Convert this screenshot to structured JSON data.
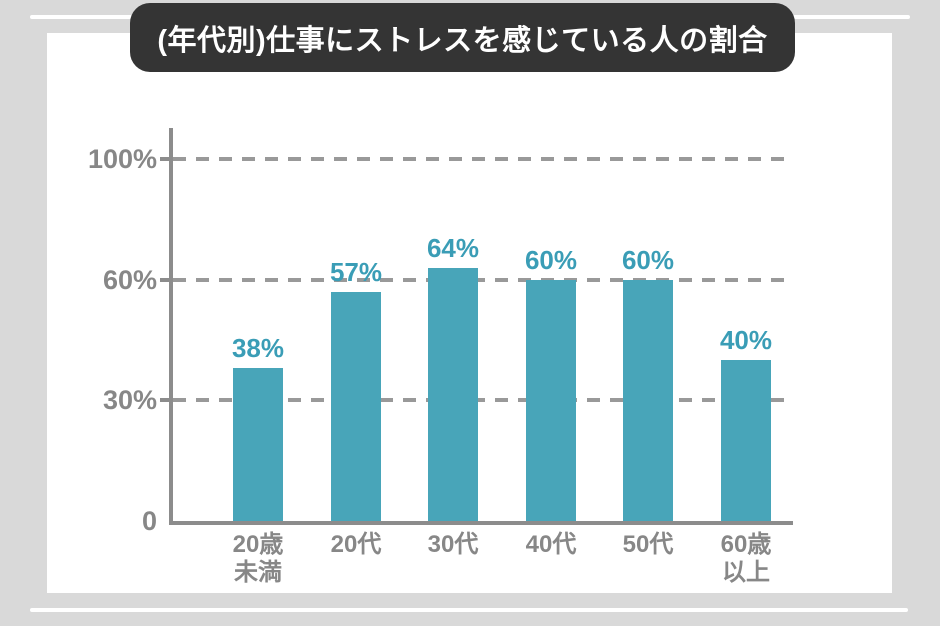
{
  "page": {
    "background_color": "#d9d9d9",
    "card_color": "#ffffff"
  },
  "title": {
    "text": "(年代別)仕事にストレスを感じている人の割合",
    "background_color": "#343434",
    "text_color": "#ffffff"
  },
  "chart_data": {
    "type": "bar",
    "title": "(年代別)仕事にストレスを感じている人の割合",
    "categories": [
      "20歳\n未満",
      "20代",
      "30代",
      "40代",
      "50代",
      "60歳\n以上"
    ],
    "values": [
      38,
      57,
      64,
      60,
      60,
      40
    ],
    "value_labels": [
      "38%",
      "57%",
      "64%",
      "60%",
      "60%",
      "40%"
    ],
    "xlabel": "",
    "ylabel": "",
    "ylim": [
      0,
      100
    ],
    "y_ticks": [
      {
        "value": 0,
        "label": "0"
      },
      {
        "value": 30,
        "label": "30%"
      },
      {
        "value": 60,
        "label": "60%"
      },
      {
        "value": 100,
        "label": "100%"
      }
    ],
    "grid": "horizontal dashed, at 30/60/100 ticks equally spaced",
    "legend": "none",
    "bar_color": "#48a5b9",
    "value_label_color": "#3a9db6",
    "axis_color": "#8c8c8c",
    "gridline_color": "#999999",
    "tick_label_color": "#878787"
  }
}
